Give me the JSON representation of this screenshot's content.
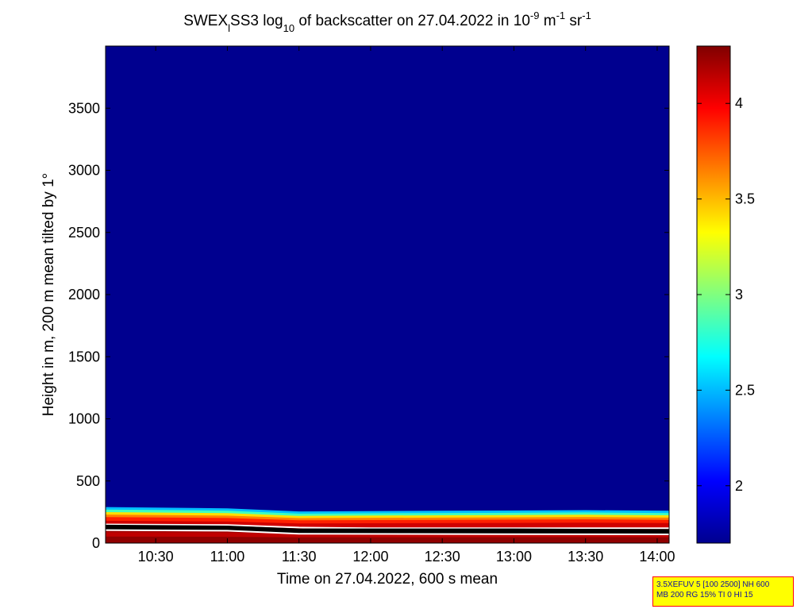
{
  "title": {
    "prefix": "SWEX",
    "prefix_sub": "l",
    "mid1": "SS3 log",
    "mid1_sub": "10",
    "mid2": " of backscatter on 27.04.2022 in 10",
    "exp1": "-9",
    "mid3": " m",
    "exp2": "-1",
    "mid4": " sr",
    "exp3": "-1"
  },
  "info_box": {
    "line1": "3.5XEFUV 5 [100 2500] NH 600",
    "line2": "MB 200 RG 15% TI 0 HI 15"
  },
  "colors": {
    "background": "#00008f",
    "cloud_line": "#000000",
    "boundary_line": "#ffffff"
  },
  "chart_data": {
    "type": "heatmap",
    "xlabel": "Time on 27.04.2022, 600 s mean",
    "ylabel": "Height in m, 200 m mean tilted by 1°",
    "xlim": [
      "10:09",
      "14:05"
    ],
    "ylim": [
      0,
      4000
    ],
    "x_ticks": [
      "10:30",
      "11:00",
      "11:30",
      "12:00",
      "12:30",
      "13:00",
      "13:30",
      "14:00"
    ],
    "y_ticks": [
      0,
      500,
      1000,
      1500,
      2000,
      2500,
      3000,
      3500
    ],
    "colorbar": {
      "colormap": "jet",
      "range": [
        1.7,
        4.3
      ],
      "ticks": [
        2,
        2.5,
        3,
        3.5,
        4
      ]
    },
    "layer_top_height_m": [
      {
        "time": "10:09",
        "height": 290
      },
      {
        "time": "11:00",
        "height": 280
      },
      {
        "time": "11:30",
        "height": 255
      },
      {
        "time": "12:30",
        "height": 260
      },
      {
        "time": "13:30",
        "height": 265
      },
      {
        "time": "14:05",
        "height": 260
      }
    ],
    "series": [
      {
        "name": "",
        "values": [
          {
            "time": "10:09",
            "height": 150
          },
          {
            "time": "11:00",
            "height": 145
          },
          {
            "time": "11:30",
            "height": 125
          },
          {
            "time": "12:00",
            "height": 120
          },
          {
            "time": "13:00",
            "height": 120
          },
          {
            "time": "14:05",
            "height": 120
          }
        ]
      },
      {
        "name": "",
        "values": [
          {
            "time": "10:09",
            "height": 125
          },
          {
            "time": "11:00",
            "height": 118
          },
          {
            "time": "11:30",
            "height": 95
          },
          {
            "time": "13:00",
            "height": 95
          },
          {
            "time": "14:05",
            "height": 90
          }
        ]
      },
      {
        "name": "",
        "values": [
          {
            "time": "10:09",
            "height": 105
          },
          {
            "time": "11:00",
            "height": 100
          },
          {
            "time": "11:30",
            "height": 75
          },
          {
            "time": "14:05",
            "height": 70
          }
        ]
      }
    ]
  }
}
